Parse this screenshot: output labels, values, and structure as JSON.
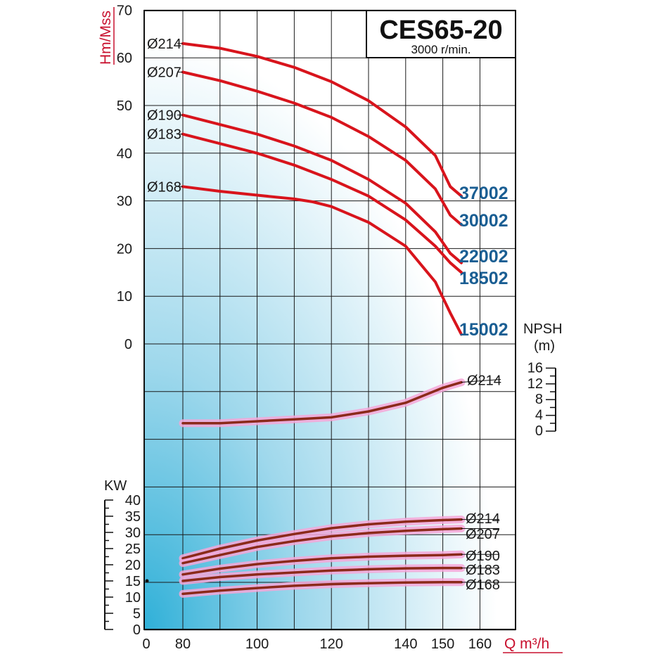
{
  "chart_data": {
    "type": "line",
    "title": "CES65-20",
    "subtitle": "3000 r/min.",
    "xlabel": "Q m³/h",
    "x_ticks": [
      0,
      80,
      100,
      120,
      140,
      150,
      160
    ],
    "head": {
      "ylabel": "Hm/Mss",
      "ylim": [
        0,
        70
      ],
      "y_ticks": [
        0,
        10,
        20,
        30,
        40,
        50,
        60,
        70
      ],
      "series": [
        {
          "name": "Ø214",
          "model": "37002",
          "x": [
            80,
            90,
            100,
            110,
            120,
            130,
            140,
            148,
            152,
            155
          ],
          "y": [
            63,
            62,
            60.3,
            58,
            55,
            51,
            45.5,
            39.5,
            33,
            31
          ]
        },
        {
          "name": "Ø207",
          "model": "30002",
          "x": [
            80,
            90,
            100,
            110,
            120,
            130,
            140,
            148,
            152,
            155
          ],
          "y": [
            57,
            55.2,
            53,
            50.5,
            47.5,
            43.5,
            38.5,
            32.5,
            27,
            25
          ]
        },
        {
          "name": "Ø190",
          "model": "22002",
          "x": [
            80,
            90,
            100,
            110,
            120,
            130,
            140,
            148,
            152,
            155
          ],
          "y": [
            48,
            46,
            44,
            41.5,
            38.5,
            34.5,
            29.5,
            23.5,
            19,
            17
          ]
        },
        {
          "name": "Ø183",
          "model": "18502",
          "x": [
            80,
            90,
            100,
            110,
            120,
            130,
            140,
            148,
            152,
            155
          ],
          "y": [
            44,
            42,
            40,
            37.5,
            34.5,
            31,
            26,
            20.5,
            17,
            15
          ]
        },
        {
          "name": "Ø168",
          "model": "15002",
          "x": [
            80,
            90,
            100,
            110,
            115,
            120,
            130,
            140,
            148,
            152,
            155
          ],
          "y": [
            33,
            32,
            31.2,
            30.4,
            29.8,
            28.8,
            25.5,
            20.5,
            13,
            6.5,
            2
          ]
        }
      ]
    },
    "npsh": {
      "ylabel": "NPSH (m)",
      "ylim": [
        0,
        16
      ],
      "y_ticks": [
        0,
        4,
        8,
        12,
        16
      ],
      "series": [
        {
          "name": "Ø214",
          "x": [
            80,
            90,
            100,
            110,
            120,
            130,
            140,
            150,
            155
          ],
          "y": [
            2,
            2,
            2.5,
            3,
            3.5,
            5,
            7.2,
            11,
            12.4
          ]
        }
      ]
    },
    "power": {
      "ylabel": "KW",
      "ylim": [
        0,
        40
      ],
      "y_ticks": [
        0,
        5,
        10,
        15,
        20,
        25,
        30,
        35,
        40
      ],
      "series": [
        {
          "name": "Ø214",
          "x": [
            80,
            90,
            100,
            110,
            120,
            130,
            140,
            150,
            155
          ],
          "y": [
            22,
            25,
            27.5,
            29.5,
            31.3,
            32.5,
            33.3,
            33.8,
            34
          ]
        },
        {
          "name": "Ø207",
          "x": [
            80,
            90,
            100,
            110,
            120,
            130,
            140,
            150,
            155
          ],
          "y": [
            20.5,
            23,
            25.5,
            27.3,
            28.8,
            29.8,
            30.5,
            31,
            31.2
          ]
        },
        {
          "name": "Ø190",
          "x": [
            80,
            90,
            100,
            110,
            120,
            130,
            140,
            150,
            155
          ],
          "y": [
            17,
            18.8,
            20.2,
            21.2,
            22,
            22.5,
            22.8,
            23,
            23.2
          ]
        },
        {
          "name": "Ø183",
          "x": [
            80,
            90,
            100,
            110,
            120,
            130,
            140,
            150,
            155
          ],
          "y": [
            15,
            16.2,
            17,
            17.6,
            18.2,
            18.6,
            18.9,
            19,
            19
          ]
        },
        {
          "name": "Ø168",
          "x": [
            80,
            90,
            100,
            110,
            120,
            130,
            140,
            150,
            155
          ],
          "y": [
            11,
            12,
            12.8,
            13.5,
            14,
            14.3,
            14.5,
            14.6,
            14.6
          ]
        }
      ]
    },
    "grid": true,
    "colors": {
      "head": "#d8141c",
      "lower": "#8b2a1a",
      "halo": "#f6a7d8",
      "model": "#1a5e93",
      "axis_label": "#c8102e"
    }
  }
}
